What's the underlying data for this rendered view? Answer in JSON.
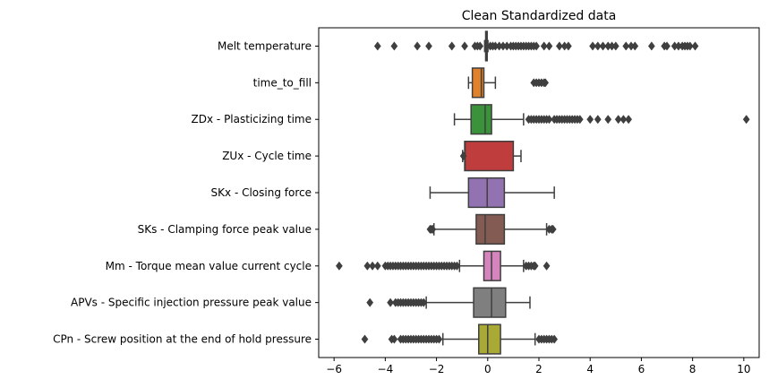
{
  "chart_data": {
    "type": "boxplot",
    "orientation": "horizontal",
    "title": "Clean Standardized data",
    "xlabel": "",
    "ylabel": "",
    "xlim": [
      -6.6,
      10.6
    ],
    "xticks": [
      -6,
      -4,
      -2,
      0,
      2,
      4,
      6,
      8,
      10
    ],
    "xtick_labels": [
      "−6",
      "−4",
      "−2",
      "0",
      "2",
      "4",
      "6",
      "8",
      "10"
    ],
    "grid": false,
    "legend": "none",
    "series": [
      {
        "name": "Melt temperature",
        "color": "#3a75b0",
        "whisker_low": -0.12,
        "q1": -0.08,
        "median": -0.05,
        "q3": -0.02,
        "whisker_high": 0.01,
        "outliers": [
          -4.3,
          -3.65,
          -2.75,
          -2.3,
          -1.4,
          -0.9,
          -0.5,
          -0.4,
          -0.3,
          0.1,
          0.2,
          0.3,
          0.45,
          0.6,
          0.75,
          0.9,
          1.0,
          1.1,
          1.2,
          1.3,
          1.4,
          1.5,
          1.6,
          1.7,
          1.8,
          1.9,
          2.2,
          2.4,
          2.8,
          3.0,
          3.15,
          4.1,
          4.3,
          4.5,
          4.7,
          4.85,
          5.0,
          5.4,
          5.6,
          5.75,
          6.4,
          6.9,
          7.0,
          7.3,
          7.45,
          7.6,
          7.7,
          7.8,
          7.9,
          8.1
        ]
      },
      {
        "name": "time_to_fill",
        "color": "#e1812c",
        "whisker_low": -0.75,
        "q1": -0.6,
        "median": -0.25,
        "q3": -0.15,
        "whisker_high": 0.3,
        "outliers": [
          1.8,
          1.9,
          2.0,
          2.1,
          2.2,
          2.25
        ]
      },
      {
        "name": "ZDx - Plasticizing time",
        "color": "#3a923a",
        "whisker_low": -1.3,
        "q1": -0.65,
        "median": -0.1,
        "q3": 0.15,
        "whisker_high": 1.4,
        "outliers": [
          1.6,
          1.7,
          1.8,
          1.9,
          2.0,
          2.1,
          2.2,
          2.3,
          2.4,
          2.6,
          2.7,
          2.8,
          2.9,
          3.0,
          3.1,
          3.2,
          3.3,
          3.4,
          3.5,
          3.6,
          4.0,
          4.3,
          4.7,
          5.1,
          5.3,
          5.5,
          10.1
        ]
      },
      {
        "name": "ZUx - Cycle time",
        "color": "#c03d3e",
        "whisker_low": -0.98,
        "q1": -0.9,
        "median": -0.88,
        "q3": 1.0,
        "whisker_high": 1.3,
        "outliers": [
          -0.95
        ]
      },
      {
        "name": "SKx - Closing force",
        "color": "#9372b2",
        "whisker_low": -2.25,
        "q1": -0.75,
        "median": -0.02,
        "q3": 0.65,
        "whisker_high": 2.6,
        "outliers": []
      },
      {
        "name": "SKs - Clamping force peak value",
        "color": "#845b53",
        "whisker_low": -2.1,
        "q1": -0.45,
        "median": -0.1,
        "q3": 0.65,
        "whisker_high": 2.3,
        "outliers": [
          -2.25,
          -2.2,
          -2.15,
          2.4,
          2.5,
          2.55
        ]
      },
      {
        "name": "Mm - Torque mean value current cycle",
        "color": "#d684bd",
        "whisker_low": -1.1,
        "q1": -0.15,
        "median": 0.15,
        "q3": 0.5,
        "whisker_high": 1.4,
        "outliers": [
          -5.8,
          -4.7,
          -4.5,
          -4.3,
          -4.0,
          -3.9,
          -3.8,
          -3.7,
          -3.6,
          -3.5,
          -3.4,
          -3.3,
          -3.2,
          -3.1,
          -3.0,
          -2.9,
          -2.8,
          -2.7,
          -2.6,
          -2.5,
          -2.4,
          -2.3,
          -2.2,
          -2.1,
          -2.0,
          -1.9,
          -1.8,
          -1.7,
          -1.6,
          -1.5,
          -1.4,
          -1.3,
          -1.2,
          1.5,
          1.6,
          1.7,
          1.8,
          1.85,
          2.3
        ]
      },
      {
        "name": "APVs - Specific injection pressure peak value",
        "color": "#7f7f7f",
        "whisker_low": -2.4,
        "q1": -0.55,
        "median": 0.15,
        "q3": 0.7,
        "whisker_high": 1.65,
        "outliers": [
          -4.6,
          -3.8,
          -3.6,
          -3.5,
          -3.4,
          -3.3,
          -3.2,
          -3.1,
          -3.0,
          -2.9,
          -2.8,
          -2.7,
          -2.6,
          -2.5
        ]
      },
      {
        "name": "CPn - Screw position at the end of hold pressure",
        "color": "#a9aa35",
        "whisker_low": -1.75,
        "q1": -0.35,
        "median": 0.0,
        "q3": 0.5,
        "whisker_high": 1.85,
        "outliers": [
          -4.8,
          -3.75,
          -3.65,
          -3.4,
          -3.3,
          -3.2,
          -3.1,
          -3.0,
          -2.9,
          -2.8,
          -2.7,
          -2.6,
          -2.5,
          -2.4,
          -2.3,
          -2.2,
          -2.1,
          -2.0,
          -1.9,
          2.0,
          2.1,
          2.2,
          2.3,
          2.4,
          2.5,
          2.6
        ]
      }
    ]
  }
}
